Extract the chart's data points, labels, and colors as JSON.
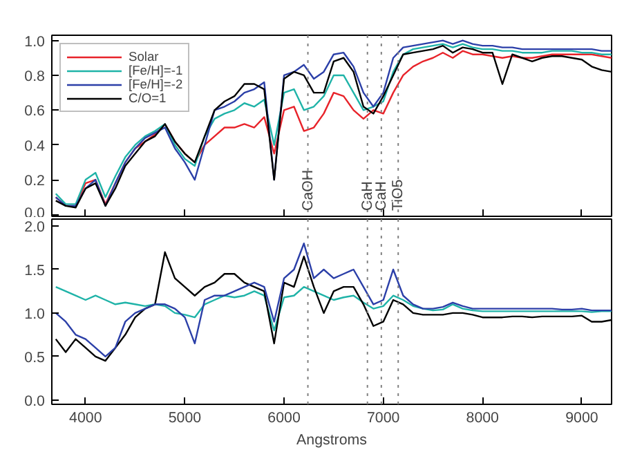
{
  "chart_data": [
    {
      "type": "line",
      "x": [
        3700,
        3800,
        3900,
        4000,
        4100,
        4200,
        4300,
        4400,
        4500,
        4600,
        4700,
        4800,
        4900,
        5000,
        5100,
        5200,
        5300,
        5400,
        5500,
        5600,
        5700,
        5800,
        5900,
        6000,
        6100,
        6200,
        6300,
        6400,
        6500,
        6600,
        6700,
        6800,
        6900,
        7000,
        7100,
        7200,
        7300,
        7400,
        7500,
        7600,
        7700,
        7800,
        7900,
        8000,
        8100,
        8200,
        8300,
        8400,
        8500,
        8600,
        8700,
        8800,
        8900,
        9000,
        9100,
        9200,
        9300
      ],
      "series": [
        {
          "name": "Solar",
          "color": "#e8232a",
          "values": [
            0.1,
            0.05,
            0.05,
            0.18,
            0.2,
            0.06,
            0.18,
            0.3,
            0.38,
            0.42,
            0.46,
            0.52,
            0.42,
            0.35,
            0.3,
            0.4,
            0.45,
            0.5,
            0.5,
            0.52,
            0.5,
            0.56,
            0.35,
            0.6,
            0.62,
            0.48,
            0.5,
            0.58,
            0.7,
            0.68,
            0.6,
            0.55,
            0.6,
            0.58,
            0.7,
            0.8,
            0.85,
            0.88,
            0.9,
            0.93,
            0.9,
            0.94,
            0.92,
            0.92,
            0.91,
            0.9,
            0.91,
            0.9,
            0.9,
            0.91,
            0.92,
            0.92,
            0.92,
            0.92,
            0.92,
            0.91,
            0.9
          ]
        },
        {
          "name": "[Fe/H]=-1",
          "color": "#1fb3a8",
          "values": [
            0.12,
            0.06,
            0.06,
            0.2,
            0.24,
            0.1,
            0.22,
            0.33,
            0.4,
            0.45,
            0.48,
            0.52,
            0.4,
            0.32,
            0.28,
            0.45,
            0.55,
            0.58,
            0.6,
            0.64,
            0.62,
            0.66,
            0.4,
            0.7,
            0.72,
            0.6,
            0.62,
            0.68,
            0.8,
            0.8,
            0.7,
            0.6,
            0.62,
            0.65,
            0.82,
            0.92,
            0.95,
            0.96,
            0.97,
            0.98,
            0.96,
            0.98,
            0.96,
            0.95,
            0.95,
            0.94,
            0.94,
            0.93,
            0.93,
            0.93,
            0.94,
            0.94,
            0.94,
            0.93,
            0.93,
            0.92,
            0.92
          ]
        },
        {
          "name": "[Fe/H]=-2",
          "color": "#2b3fa8",
          "values": [
            0.1,
            0.05,
            0.05,
            0.15,
            0.2,
            0.05,
            0.18,
            0.3,
            0.38,
            0.44,
            0.47,
            0.5,
            0.38,
            0.3,
            0.2,
            0.4,
            0.6,
            0.62,
            0.65,
            0.7,
            0.72,
            0.76,
            0.2,
            0.8,
            0.82,
            0.86,
            0.78,
            0.82,
            0.92,
            0.93,
            0.85,
            0.7,
            0.62,
            0.7,
            0.9,
            0.96,
            0.97,
            0.98,
            0.99,
            1.0,
            0.98,
            1.0,
            0.98,
            0.97,
            0.97,
            0.96,
            0.96,
            0.95,
            0.95,
            0.95,
            0.95,
            0.95,
            0.95,
            0.95,
            0.95,
            0.94,
            0.94
          ]
        },
        {
          "name": "C/O=1",
          "color": "#000000",
          "values": [
            0.08,
            0.05,
            0.04,
            0.15,
            0.18,
            0.05,
            0.15,
            0.28,
            0.35,
            0.42,
            0.45,
            0.52,
            0.42,
            0.35,
            0.3,
            0.45,
            0.6,
            0.65,
            0.68,
            0.75,
            0.75,
            0.72,
            0.2,
            0.78,
            0.82,
            0.8,
            0.7,
            0.7,
            0.88,
            0.9,
            0.82,
            0.62,
            0.58,
            0.68,
            0.8,
            0.92,
            0.93,
            0.94,
            0.95,
            0.97,
            0.93,
            0.96,
            0.95,
            0.93,
            0.93,
            0.75,
            0.92,
            0.9,
            0.88,
            0.9,
            0.91,
            0.91,
            0.9,
            0.89,
            0.85,
            0.83,
            0.82
          ]
        }
      ],
      "xlim": [
        3660,
        9300
      ],
      "ylim": [
        -0.01,
        1.03
      ],
      "xticks": [
        4000,
        5000,
        6000,
        7000,
        8000,
        9000
      ],
      "yticks": [
        {
          "value": 0,
          "label": "0.0"
        },
        {
          "value": 0.2,
          "label": "0.2"
        },
        {
          "value": 0.4,
          "label": "0.4"
        },
        {
          "value": 0.6,
          "label": "0.6"
        },
        {
          "value": 0.8,
          "label": "0.8"
        },
        {
          "value": 1,
          "label": "1.0"
        }
      ],
      "tick_labels": "y",
      "legend": "top left",
      "grid": false,
      "ref_lines": [
        {
          "axis": "x",
          "value": 6240,
          "label": "CaOH",
          "color": "#808080",
          "line_style": "dotted"
        },
        {
          "axis": "x",
          "value": 6840,
          "label": "CaH",
          "color": "#808080",
          "line_style": "dotted"
        },
        {
          "axis": "x",
          "value": 6980,
          "label": "CaH",
          "color": "#808080",
          "line_style": "dotted"
        },
        {
          "axis": "x",
          "value": 7150,
          "label": "TiO5",
          "color": "#808080",
          "line_style": "dotted"
        }
      ]
    },
    {
      "type": "line",
      "x": [
        3700,
        3800,
        3900,
        4000,
        4100,
        4200,
        4300,
        4400,
        4500,
        4600,
        4700,
        4800,
        4900,
        5000,
        5100,
        5200,
        5300,
        5400,
        5500,
        5600,
        5700,
        5800,
        5900,
        6000,
        6100,
        6200,
        6300,
        6400,
        6500,
        6600,
        6700,
        6800,
        6900,
        7000,
        7100,
        7200,
        7300,
        7400,
        7500,
        7600,
        7700,
        7800,
        7900,
        8000,
        8100,
        8200,
        8300,
        8400,
        8500,
        8600,
        8700,
        8800,
        8900,
        9000,
        9100,
        9200,
        9300
      ],
      "series": [
        {
          "color": "#1fb3a8",
          "values": [
            1.3,
            1.25,
            1.2,
            1.15,
            1.2,
            1.15,
            1.1,
            1.12,
            1.1,
            1.08,
            1.1,
            1.08,
            1.0,
            0.98,
            0.95,
            1.1,
            1.15,
            1.2,
            1.18,
            1.2,
            1.25,
            1.2,
            0.8,
            1.18,
            1.2,
            1.3,
            1.25,
            1.2,
            1.15,
            1.18,
            1.2,
            1.12,
            1.05,
            1.08,
            1.2,
            1.15,
            1.08,
            1.05,
            1.03,
            1.04,
            1.1,
            1.05,
            1.03,
            1.02,
            1.02,
            1.02,
            1.02,
            1.02,
            1.02,
            1.02,
            1.02,
            1.02,
            1.02,
            1.02,
            1.01,
            1.02,
            1.02
          ]
        },
        {
          "color": "#000000",
          "values": [
            0.7,
            0.55,
            0.7,
            0.6,
            0.5,
            0.45,
            0.6,
            0.75,
            0.95,
            1.05,
            1.1,
            1.7,
            1.4,
            1.3,
            1.2,
            1.3,
            1.35,
            1.45,
            1.45,
            1.35,
            1.3,
            1.25,
            0.65,
            1.35,
            1.3,
            1.65,
            1.3,
            1.0,
            1.25,
            1.3,
            1.3,
            1.1,
            0.85,
            0.9,
            1.15,
            1.1,
            1.0,
            0.98,
            0.98,
            0.98,
            1.0,
            1.0,
            0.98,
            0.95,
            0.95,
            0.95,
            0.96,
            0.96,
            0.95,
            0.96,
            0.96,
            0.96,
            0.96,
            0.97,
            0.9,
            0.9,
            0.92
          ]
        },
        {
          "color": "#2b3fa8",
          "values": [
            1.0,
            0.9,
            0.75,
            0.7,
            0.6,
            0.5,
            0.6,
            0.9,
            1.0,
            1.05,
            1.1,
            1.1,
            1.05,
            0.95,
            0.65,
            1.15,
            1.2,
            1.2,
            1.25,
            1.3,
            1.35,
            1.3,
            0.9,
            1.4,
            1.5,
            1.8,
            1.4,
            1.5,
            1.4,
            1.45,
            1.5,
            1.3,
            1.1,
            1.15,
            1.5,
            1.2,
            1.1,
            1.05,
            1.05,
            1.07,
            1.12,
            1.08,
            1.05,
            1.05,
            1.05,
            1.05,
            1.05,
            1.05,
            1.05,
            1.05,
            1.05,
            1.04,
            1.04,
            1.05,
            1.03,
            1.03,
            1.03
          ]
        }
      ],
      "xlabel": "Angstroms",
      "xlim": [
        3660,
        9300
      ],
      "ylim": [
        -0.05,
        2.08
      ],
      "xticks": [
        4000,
        5000,
        6000,
        7000,
        8000,
        9000
      ],
      "yticks": [
        {
          "value": 0,
          "label": "0.0"
        },
        {
          "value": 0.5,
          "label": "0.5"
        },
        {
          "value": 1,
          "label": "1.0"
        },
        {
          "value": 1.5,
          "label": "1.5"
        },
        {
          "value": 2,
          "label": "2.0"
        }
      ],
      "grid": false,
      "ref_lines": [
        {
          "axis": "x",
          "value": 6240,
          "color": "#808080",
          "line_style": "dotted"
        },
        {
          "axis": "x",
          "value": 6840,
          "color": "#808080",
          "line_style": "dotted"
        },
        {
          "axis": "x",
          "value": 6980,
          "color": "#808080",
          "line_style": "dotted"
        },
        {
          "axis": "x",
          "value": 7150,
          "color": "#808080",
          "line_style": "dotted"
        }
      ]
    }
  ]
}
